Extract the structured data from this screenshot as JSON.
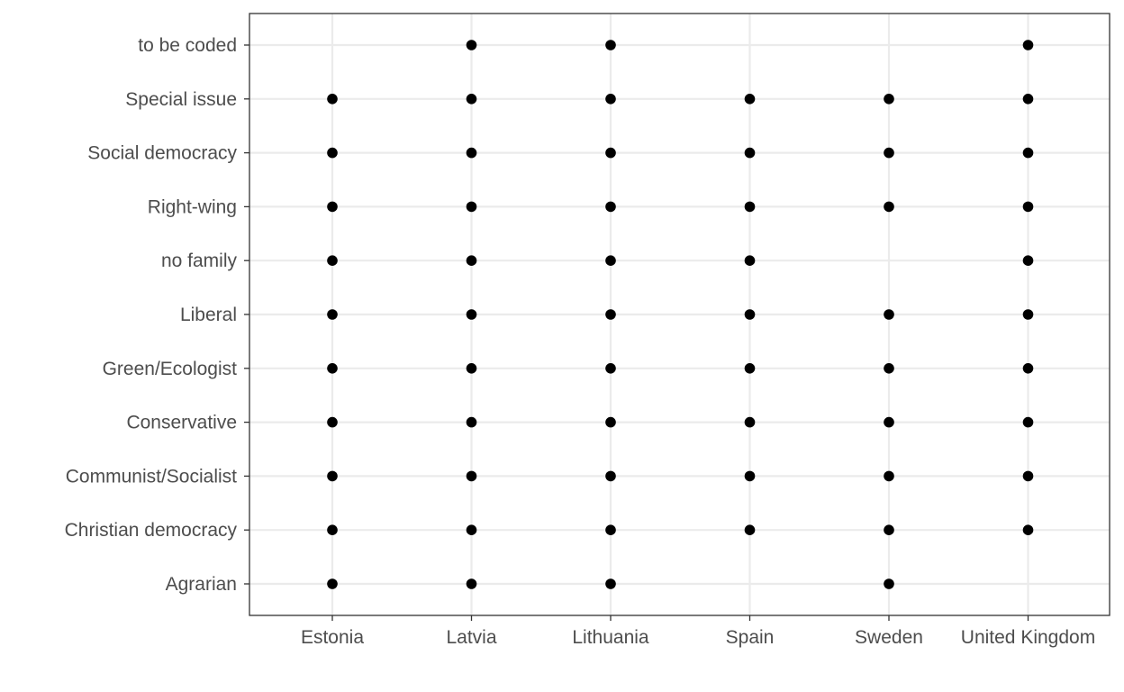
{
  "chart_data": {
    "type": "scatter",
    "title": "",
    "xlabel": "",
    "ylabel": "",
    "grid": true,
    "categories_x": [
      "Estonia",
      "Latvia",
      "Lithuania",
      "Spain",
      "Sweden",
      "United Kingdom"
    ],
    "categories_y": [
      "Agrarian",
      "Christian democracy",
      "Communist/Socialist",
      "Conservative",
      "Green/Ecologist",
      "Liberal",
      "no family",
      "Right-wing",
      "Social democracy",
      "Special issue",
      "to be coded"
    ],
    "points": [
      {
        "x": "Latvia",
        "y": "to be coded"
      },
      {
        "x": "Lithuania",
        "y": "to be coded"
      },
      {
        "x": "United Kingdom",
        "y": "to be coded"
      },
      {
        "x": "Estonia",
        "y": "Special issue"
      },
      {
        "x": "Latvia",
        "y": "Special issue"
      },
      {
        "x": "Lithuania",
        "y": "Special issue"
      },
      {
        "x": "Spain",
        "y": "Special issue"
      },
      {
        "x": "Sweden",
        "y": "Special issue"
      },
      {
        "x": "United Kingdom",
        "y": "Special issue"
      },
      {
        "x": "Estonia",
        "y": "Social democracy"
      },
      {
        "x": "Latvia",
        "y": "Social democracy"
      },
      {
        "x": "Lithuania",
        "y": "Social democracy"
      },
      {
        "x": "Spain",
        "y": "Social democracy"
      },
      {
        "x": "Sweden",
        "y": "Social democracy"
      },
      {
        "x": "United Kingdom",
        "y": "Social democracy"
      },
      {
        "x": "Estonia",
        "y": "Right-wing"
      },
      {
        "x": "Latvia",
        "y": "Right-wing"
      },
      {
        "x": "Lithuania",
        "y": "Right-wing"
      },
      {
        "x": "Spain",
        "y": "Right-wing"
      },
      {
        "x": "Sweden",
        "y": "Right-wing"
      },
      {
        "x": "United Kingdom",
        "y": "Right-wing"
      },
      {
        "x": "Estonia",
        "y": "no family"
      },
      {
        "x": "Latvia",
        "y": "no family"
      },
      {
        "x": "Lithuania",
        "y": "no family"
      },
      {
        "x": "Spain",
        "y": "no family"
      },
      {
        "x": "United Kingdom",
        "y": "no family"
      },
      {
        "x": "Estonia",
        "y": "Liberal"
      },
      {
        "x": "Latvia",
        "y": "Liberal"
      },
      {
        "x": "Lithuania",
        "y": "Liberal"
      },
      {
        "x": "Spain",
        "y": "Liberal"
      },
      {
        "x": "Sweden",
        "y": "Liberal"
      },
      {
        "x": "United Kingdom",
        "y": "Liberal"
      },
      {
        "x": "Estonia",
        "y": "Green/Ecologist"
      },
      {
        "x": "Latvia",
        "y": "Green/Ecologist"
      },
      {
        "x": "Lithuania",
        "y": "Green/Ecologist"
      },
      {
        "x": "Spain",
        "y": "Green/Ecologist"
      },
      {
        "x": "Sweden",
        "y": "Green/Ecologist"
      },
      {
        "x": "United Kingdom",
        "y": "Green/Ecologist"
      },
      {
        "x": "Estonia",
        "y": "Conservative"
      },
      {
        "x": "Latvia",
        "y": "Conservative"
      },
      {
        "x": "Lithuania",
        "y": "Conservative"
      },
      {
        "x": "Spain",
        "y": "Conservative"
      },
      {
        "x": "Sweden",
        "y": "Conservative"
      },
      {
        "x": "United Kingdom",
        "y": "Conservative"
      },
      {
        "x": "Estonia",
        "y": "Communist/Socialist"
      },
      {
        "x": "Latvia",
        "y": "Communist/Socialist"
      },
      {
        "x": "Lithuania",
        "y": "Communist/Socialist"
      },
      {
        "x": "Spain",
        "y": "Communist/Socialist"
      },
      {
        "x": "Sweden",
        "y": "Communist/Socialist"
      },
      {
        "x": "United Kingdom",
        "y": "Communist/Socialist"
      },
      {
        "x": "Estonia",
        "y": "Christian democracy"
      },
      {
        "x": "Latvia",
        "y": "Christian democracy"
      },
      {
        "x": "Lithuania",
        "y": "Christian democracy"
      },
      {
        "x": "Spain",
        "y": "Christian democracy"
      },
      {
        "x": "Sweden",
        "y": "Christian democracy"
      },
      {
        "x": "United Kingdom",
        "y": "Christian democracy"
      },
      {
        "x": "Estonia",
        "y": "Agrarian"
      },
      {
        "x": "Latvia",
        "y": "Agrarian"
      },
      {
        "x": "Lithuania",
        "y": "Agrarian"
      },
      {
        "x": "Sweden",
        "y": "Agrarian"
      }
    ],
    "colors": {
      "point": "#000000",
      "grid": "#ebebeb",
      "axis_text": "#4d4d4d",
      "panel_border": "#333333"
    }
  }
}
